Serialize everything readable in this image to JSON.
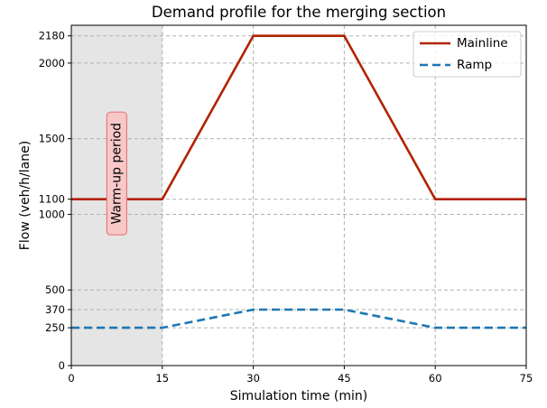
{
  "chart_data": {
    "type": "line",
    "title": "Demand profile for the merging section",
    "xlabel": "Simulation time (min)",
    "ylabel": "Flow (veh/h/lane)",
    "xlim": [
      0,
      75
    ],
    "ylim": [
      0,
      2250
    ],
    "x_ticks": [
      0,
      15,
      30,
      45,
      60,
      75
    ],
    "y_ticks": [
      0,
      250,
      370,
      500,
      1000,
      1100,
      1500,
      2000,
      2180
    ],
    "grid": true,
    "legend_position": "top-right",
    "series": [
      {
        "name": "Mainline",
        "style": "solid",
        "color": "#b22200",
        "x": [
          0,
          15,
          30,
          45,
          60,
          75
        ],
        "y": [
          1100,
          1100,
          2180,
          2180,
          1100,
          1100
        ]
      },
      {
        "name": "Ramp",
        "style": "dashed",
        "color": "#1f77b4",
        "x": [
          0,
          15,
          30,
          45,
          60,
          75
        ],
        "y": [
          250,
          250,
          370,
          370,
          250,
          250
        ]
      }
    ],
    "shaded_region": {
      "x_start": 0,
      "x_end": 15,
      "color": "#e5e5e5"
    },
    "annotation": {
      "text": "Warm-up period",
      "x": 7.5,
      "y": 1270,
      "box_color": "#f8c8c8",
      "border_color": "#e87a7a"
    }
  }
}
